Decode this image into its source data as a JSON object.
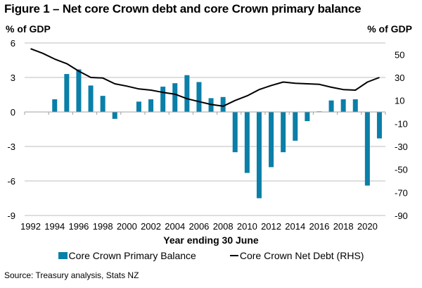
{
  "chart_data": {
    "type": "bar+line",
    "title": "Figure 1 – Net core Crown debt and core Crown primary balance",
    "left_axis_label": "% of GDP",
    "right_axis_label": "% of GDP",
    "xlabel": "Year ending 30 June",
    "source": "Source: Treasury analysis, Stats NZ",
    "left_ylim": [
      -9,
      6
    ],
    "left_yticks": [
      6,
      3,
      0,
      -3,
      -6,
      -9
    ],
    "right_ylim": [
      -90,
      60
    ],
    "right_yticks": [
      50,
      30,
      10,
      -10,
      -30,
      -50,
      -70,
      -90
    ],
    "x": [
      1992,
      1993,
      1994,
      1995,
      1996,
      1997,
      1998,
      1999,
      2000,
      2001,
      2002,
      2003,
      2004,
      2005,
      2006,
      2007,
      2008,
      2009,
      2010,
      2011,
      2012,
      2013,
      2014,
      2015,
      2016,
      2017,
      2018,
      2019,
      2020,
      2021
    ],
    "xtick_labels": [
      "1992",
      "1994",
      "1996",
      "1998",
      "2000",
      "2002",
      "2004",
      "2006",
      "2008",
      "2010",
      "2012",
      "2014",
      "2016",
      "2018",
      "2020"
    ],
    "grid": "horizontal",
    "legend_position": "bottom",
    "series": [
      {
        "name": "Core Crown Primary Balance",
        "type": "bar",
        "axis": "left",
        "color": "#0a7fa8",
        "values": [
          0,
          0,
          1.1,
          3.3,
          3.7,
          2.3,
          1.4,
          -0.6,
          0.0,
          0.9,
          1.1,
          2.2,
          2.5,
          3.2,
          2.6,
          1.2,
          1.3,
          -3.5,
          -5.3,
          -7.5,
          -4.8,
          -3.5,
          -2.5,
          -0.8,
          0.05,
          1.0,
          1.1,
          1.1,
          -6.4,
          -2.3
        ]
      },
      {
        "name": "Core Crown Net Debt (RHS)",
        "type": "line",
        "axis": "right",
        "color": "#000000",
        "values": [
          55,
          51,
          46,
          42,
          35.5,
          30,
          29.5,
          24.5,
          22.5,
          20,
          19,
          17,
          15.5,
          11.5,
          9,
          6.5,
          5,
          10,
          14,
          19.5,
          23,
          26,
          25,
          24.5,
          24,
          21.5,
          19.5,
          19,
          26,
          30
        ]
      }
    ]
  }
}
